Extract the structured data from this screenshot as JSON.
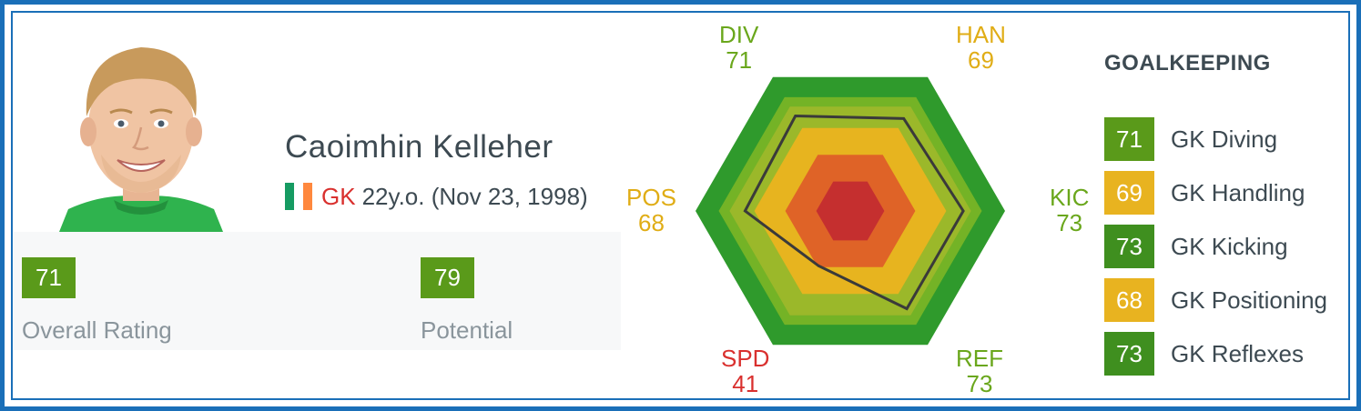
{
  "player": {
    "name": "Caoimhin Kelleher",
    "position": "GK",
    "age_text": "22y.o. (Nov 23, 1998)",
    "flag": {
      "colors": [
        "#169b62",
        "#ffffff",
        "#ff883e"
      ]
    }
  },
  "ratings": {
    "overall": {
      "value": "71",
      "label": "Overall Rating"
    },
    "potential": {
      "value": "79",
      "label": "Potential"
    }
  },
  "radar": {
    "axes": [
      {
        "key": "DIV",
        "value": 71,
        "color": "#6aa71c"
      },
      {
        "key": "HAN",
        "value": 69,
        "color": "#e0ad16"
      },
      {
        "key": "KIC",
        "value": 73,
        "color": "#6aa71c"
      },
      {
        "key": "REF",
        "value": 73,
        "color": "#6aa71c"
      },
      {
        "key": "SPD",
        "value": 41,
        "color": "#d9302e"
      },
      {
        "key": "POS",
        "value": 68,
        "color": "#e0ad16"
      }
    ],
    "max": 100
  },
  "goalkeeping": {
    "title": "GOALKEEPING",
    "stats": [
      {
        "value": "71",
        "label": "GK Diving",
        "color": "#5a9a1a"
      },
      {
        "value": "69",
        "label": "GK Handling",
        "color": "#e8b320"
      },
      {
        "value": "73",
        "label": "GK Kicking",
        "color": "#3f8f1f"
      },
      {
        "value": "68",
        "label": "GK Positioning",
        "color": "#e8b320"
      },
      {
        "value": "73",
        "label": "GK Reflexes",
        "color": "#3f8f1f"
      }
    ]
  }
}
